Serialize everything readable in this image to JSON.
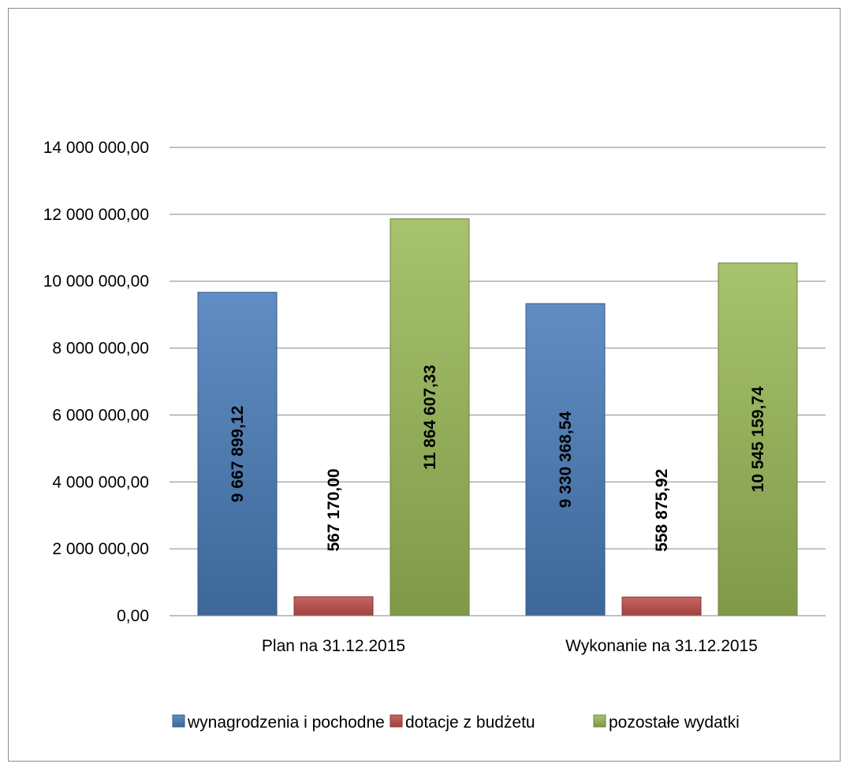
{
  "chart_data": {
    "type": "bar",
    "title": "",
    "xlabel": "",
    "ylabel": "",
    "categories": [
      "Plan na 31.12.2015",
      "Wykonanie na 31.12.2015"
    ],
    "series": [
      {
        "name": "wynagrodzenia i pochodne",
        "values": [
          9667899.12,
          9330368.54
        ],
        "labels": [
          "9 667 899,12",
          "9 330 368,54"
        ],
        "color": "#4a7ebb"
      },
      {
        "name": "dotacje z budżetu",
        "values": [
          567170.0,
          558875.92
        ],
        "labels": [
          "567 170,00",
          "558 875,92"
        ],
        "color": "#c0504d"
      },
      {
        "name": "pozostałe wydatki",
        "values": [
          11864607.33,
          10545159.74
        ],
        "labels": [
          "11 864 607,33",
          "10 545 159,74"
        ],
        "color": "#9bbb59"
      }
    ],
    "ylim": [
      0,
      14000000
    ],
    "yticks": [
      0,
      2000000,
      4000000,
      6000000,
      8000000,
      10000000,
      12000000,
      14000000
    ],
    "ytick_labels": [
      "0,00",
      "2 000 000,00",
      "4 000 000,00",
      "6 000 000,00",
      "8 000 000,00",
      "10 000 000,00",
      "12 000 000,00",
      "14 000 000,00"
    ],
    "grid": true,
    "legend": "bottom",
    "data_label_orientation": "vertical"
  }
}
